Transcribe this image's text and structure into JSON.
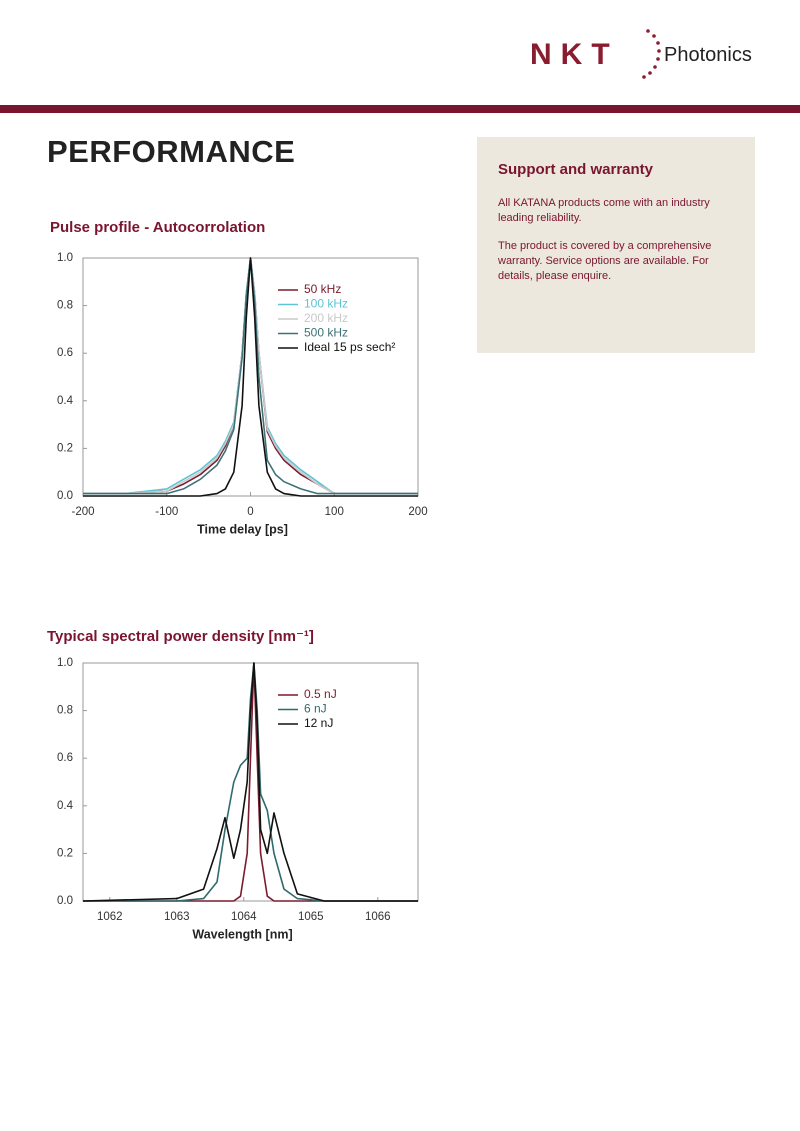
{
  "header": {
    "logo_mark": "NKT",
    "logo_text": "Photonics"
  },
  "title": "PERFORMANCE",
  "sidebar": {
    "heading": "Support and warranty",
    "paragraphs": [
      "All KATANA products come with an industry leading reliability.",
      "The product is covered by a comprehensive warranty. Service options are available. For details, please enquire."
    ]
  },
  "chart_data": [
    {
      "type": "line",
      "title": "Pulse profile - Autocorrolation",
      "xlabel": "Time delay [ps]",
      "xlim": [
        -200,
        200
      ],
      "xticks": [
        -200,
        -100,
        0,
        100,
        200
      ],
      "ylim": [
        0,
        1
      ],
      "yticks": [
        {
          "value": 0,
          "label": "0.0"
        },
        0.2,
        0.4,
        0.6,
        0.8,
        {
          "value": 1,
          "label": "1.0"
        }
      ],
      "legend": "upper right",
      "x": [
        -200,
        -150,
        -100,
        -80,
        -60,
        -40,
        -30,
        -20,
        -10,
        -5,
        0,
        5,
        10,
        20,
        30,
        40,
        60,
        80,
        100,
        150,
        200
      ],
      "series": [
        {
          "name": "50 kHz",
          "color": "#7b1c2e",
          "values": [
            0.01,
            0.01,
            0.02,
            0.05,
            0.09,
            0.15,
            0.21,
            0.3,
            0.6,
            0.85,
            1,
            0.85,
            0.6,
            0.27,
            0.2,
            0.15,
            0.09,
            0.05,
            0.01,
            0.01,
            0.01
          ]
        },
        {
          "name": "100 kHz",
          "color": "#5ec4d4",
          "values": [
            0.01,
            0.01,
            0.03,
            0.07,
            0.11,
            0.17,
            0.23,
            0.31,
            0.6,
            0.85,
            1,
            0.85,
            0.6,
            0.29,
            0.22,
            0.17,
            0.11,
            0.06,
            0.01,
            0.01,
            0.01
          ]
        },
        {
          "name": "200 kHz",
          "color": "#c9c9c9",
          "values": [
            0.01,
            0.01,
            0.02,
            0.06,
            0.1,
            0.16,
            0.22,
            0.3,
            0.6,
            0.85,
            1,
            0.85,
            0.6,
            0.28,
            0.21,
            0.16,
            0.1,
            0.05,
            0.01,
            0.01,
            0.01
          ]
        },
        {
          "name": "500 kHz",
          "color": "#3d7378",
          "values": [
            0.01,
            0.01,
            0.01,
            0.03,
            0.07,
            0.13,
            0.19,
            0.28,
            0.58,
            0.84,
            1,
            0.82,
            0.5,
            0.15,
            0.09,
            0.06,
            0.03,
            0.01,
            0.01,
            0.01,
            0.01
          ]
        },
        {
          "name": "Ideal 15 ps sech²",
          "color": "#111111",
          "values": [
            0,
            0,
            0,
            0,
            0,
            0.01,
            0.03,
            0.1,
            0.38,
            0.75,
            1,
            0.75,
            0.38,
            0.1,
            0.03,
            0.01,
            0,
            0,
            0,
            0,
            0
          ]
        }
      ]
    },
    {
      "type": "line",
      "title": "Typical spectral power density [nm⁻¹]",
      "xlabel": "Wavelength [nm]",
      "xlim": [
        1061.6,
        1066.6
      ],
      "xticks": [
        1062,
        1063,
        1064,
        1065,
        1066
      ],
      "ylim": [
        0,
        1
      ],
      "yticks": [
        {
          "value": 0,
          "label": "0.0"
        },
        0.2,
        0.4,
        0.6,
        0.8,
        {
          "value": 1,
          "label": "1.0"
        }
      ],
      "legend": "upper right",
      "x": [
        1061.6,
        1063.0,
        1063.4,
        1063.6,
        1063.72,
        1063.85,
        1063.95,
        1064.05,
        1064.1,
        1064.15,
        1064.2,
        1064.25,
        1064.35,
        1064.45,
        1064.6,
        1064.8,
        1065.2,
        1066.6
      ],
      "series": [
        {
          "name": "0.5 nJ",
          "color": "#7b1c2e",
          "values": [
            0,
            0,
            0,
            0,
            0,
            0,
            0.02,
            0.2,
            0.6,
            1,
            0.6,
            0.2,
            0.02,
            0,
            0,
            0,
            0,
            0
          ]
        },
        {
          "name": "6 nJ",
          "color": "#2f6b6e",
          "values": [
            0,
            0,
            0.01,
            0.08,
            0.3,
            0.5,
            0.57,
            0.6,
            0.85,
            1,
            0.8,
            0.45,
            0.38,
            0.2,
            0.05,
            0.01,
            0,
            0
          ]
        },
        {
          "name": "12 nJ",
          "color": "#111111",
          "values": [
            0,
            0.01,
            0.05,
            0.22,
            0.35,
            0.18,
            0.3,
            0.5,
            0.8,
            1,
            0.75,
            0.3,
            0.2,
            0.37,
            0.2,
            0.03,
            0,
            0
          ]
        }
      ]
    }
  ]
}
